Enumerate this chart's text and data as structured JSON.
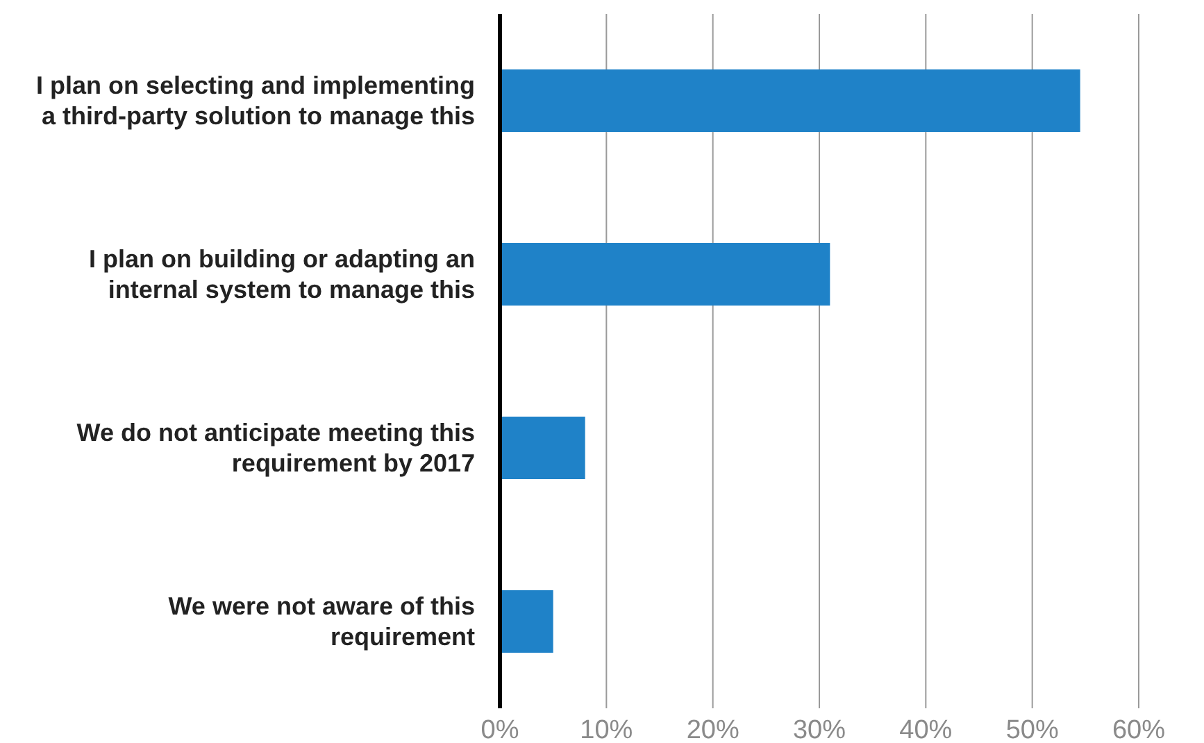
{
  "chart_data": {
    "type": "bar",
    "orientation": "horizontal",
    "categories": [
      "I plan on selecting and implementing a third-party solution to manage this",
      "I plan on building or adapting an internal system to manage this",
      "We do not anticipate meeting this requirement by 2017",
      "We were not aware of this requirement"
    ],
    "values": [
      54.5,
      31,
      8,
      5
    ],
    "color": "#1f82c8",
    "xlim": [
      0,
      60
    ],
    "xticks": [
      {
        "value": 0,
        "label": "0%"
      },
      {
        "value": 10,
        "label": "10%"
      },
      {
        "value": 20,
        "label": "20%"
      },
      {
        "value": 30,
        "label": "30%"
      },
      {
        "value": 40,
        "label": "40%"
      },
      {
        "value": 50,
        "label": "50%"
      },
      {
        "value": 60,
        "label": "60%"
      }
    ],
    "grid": "x"
  }
}
